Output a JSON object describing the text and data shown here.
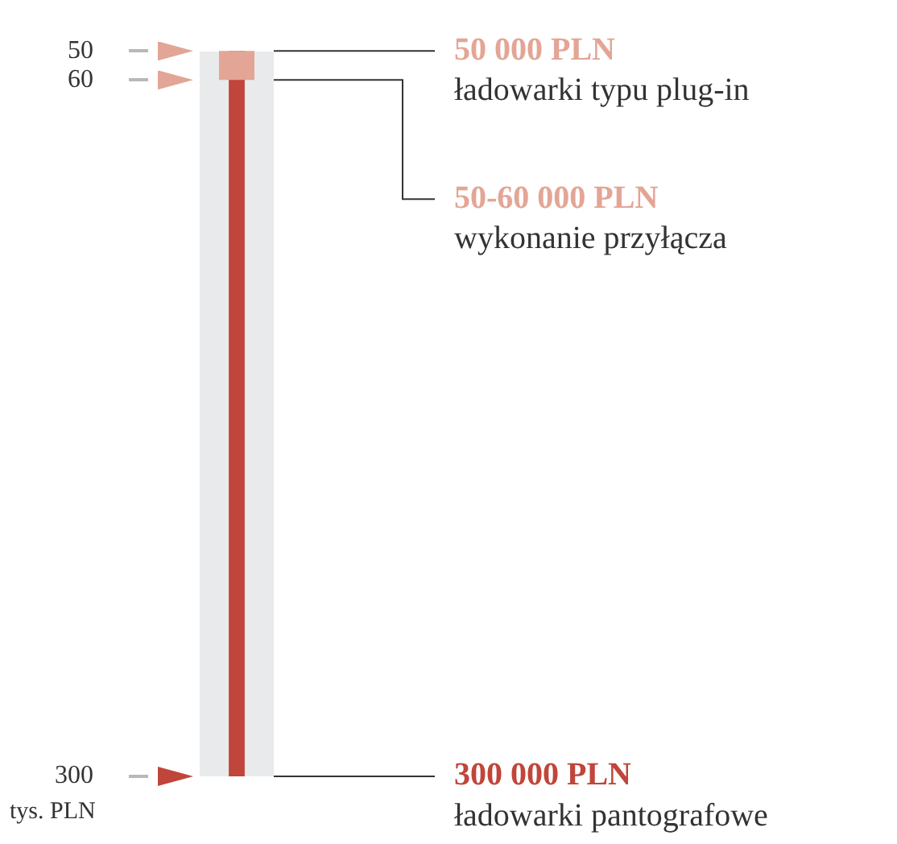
{
  "chart_data": {
    "type": "bar",
    "ylabel": "tys. PLN",
    "categories": [
      null
    ],
    "series": [
      {
        "color": "#e3a595",
        "values": [
          60
        ]
      },
      {
        "color": "#c0453a",
        "values": [
          300
        ]
      }
    ],
    "ylim": [
      300,
      50
    ],
    "yticks": [
      50,
      60,
      300
    ],
    "annotations": [
      "50 000 PLN",
      "ładowarki typu plug-in",
      "50-60 000 PLN",
      "wykonanie przyłącza",
      "300 000 PLN",
      "ładowarki pantografowe"
    ]
  }
}
